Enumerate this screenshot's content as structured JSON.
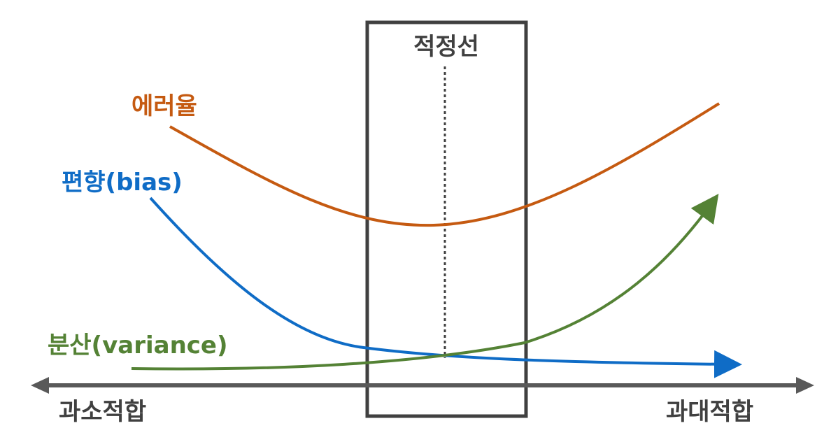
{
  "diagram": {
    "optimal_label": "적정선",
    "error_label": "에러율",
    "bias_label": "편향(bias)",
    "variance_label": "분산(variance)",
    "underfit_label": "과소적합",
    "overfit_label": "과대적합",
    "colors": {
      "error": "#C55A11",
      "bias": "#0F6CC6",
      "variance": "#548235",
      "axis": "#595959",
      "box": "#404040",
      "optimal_text": "#404040"
    }
  }
}
